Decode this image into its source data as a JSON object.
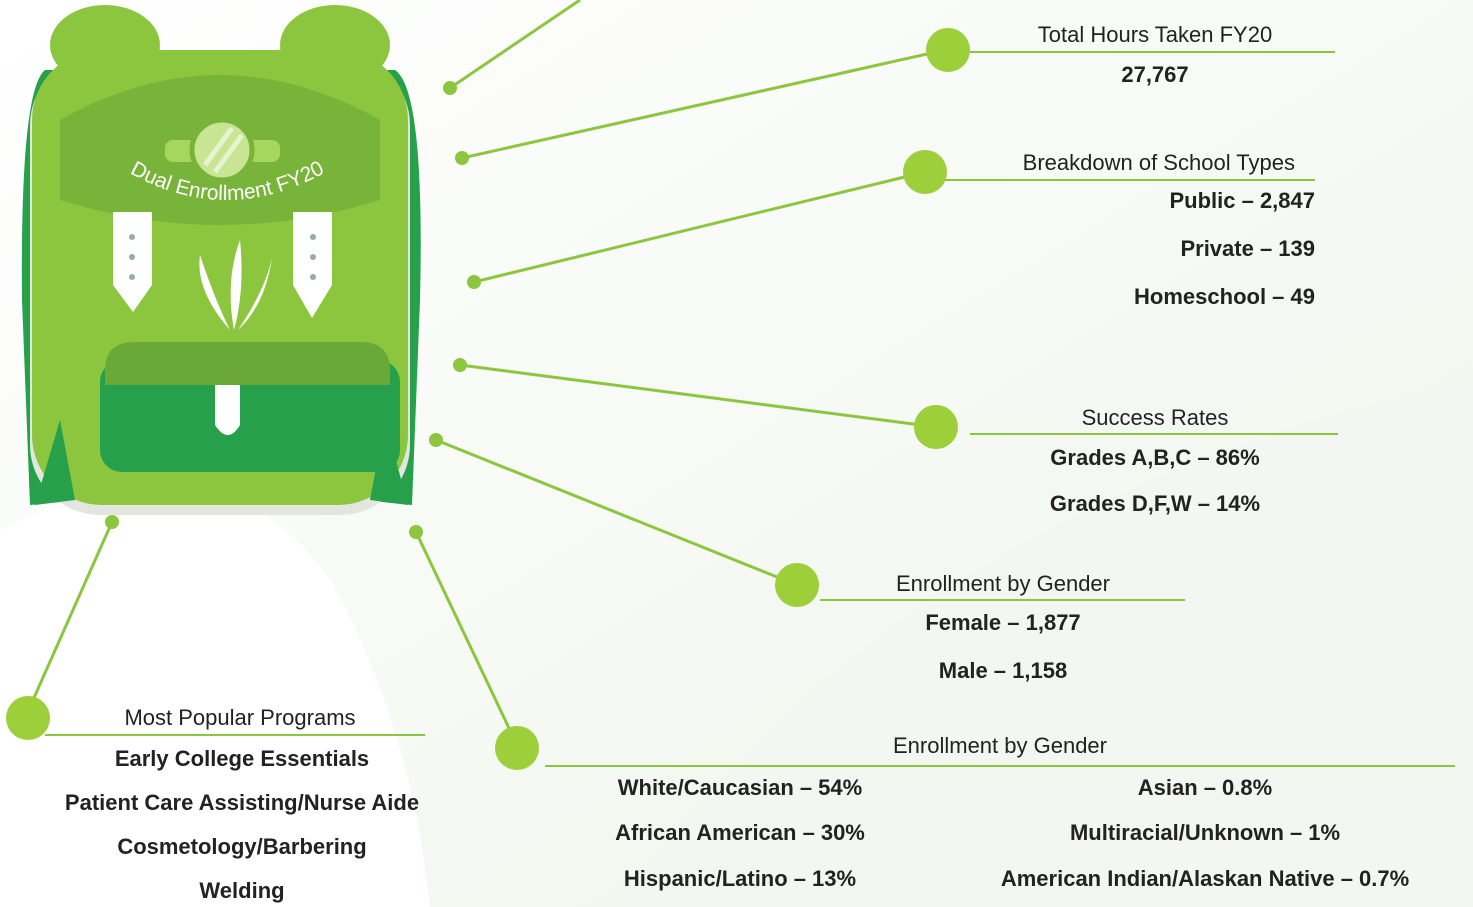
{
  "backpack": {
    "label": "Dual Enrollment FY20"
  },
  "sections": [
    {
      "title": "Total Hours Taken FY20",
      "items": [
        "27,767"
      ]
    },
    {
      "title": "Breakdown of School Types",
      "items": [
        "Public – 2,847",
        "Private – 139",
        "Homeschool – 49"
      ]
    },
    {
      "title": "Success Rates",
      "items": [
        {
          "label": "Grades A,B,C –",
          "value": "86%"
        },
        {
          "label": "Grades D,F,W –",
          "value": "14%"
        }
      ]
    },
    {
      "title": "Enrollment by Gender",
      "items": [
        "Female – 1,877",
        "Male – 1,158"
      ]
    },
    {
      "title": "Enrollment by Gender",
      "items": [
        {
          "label": "White/Caucasian –",
          "value": "54%"
        },
        {
          "label": "African American –",
          "value": "30%"
        },
        {
          "label": "Hispanic/Latino –",
          "value": "13%"
        },
        {
          "label": "Asian –",
          "value": "0.8%"
        },
        {
          "label": "Multiracial/Unknown –",
          "value": "1%"
        },
        {
          "label": "American Indian/Alaskan Native –",
          "value": "0.7%"
        }
      ]
    },
    {
      "title": "Most Popular Programs",
      "items": [
        "Early College Essentials",
        "Patient Care Assisting/Nurse Aide",
        "Cosmetology/Barbering",
        "Welding"
      ]
    }
  ]
}
